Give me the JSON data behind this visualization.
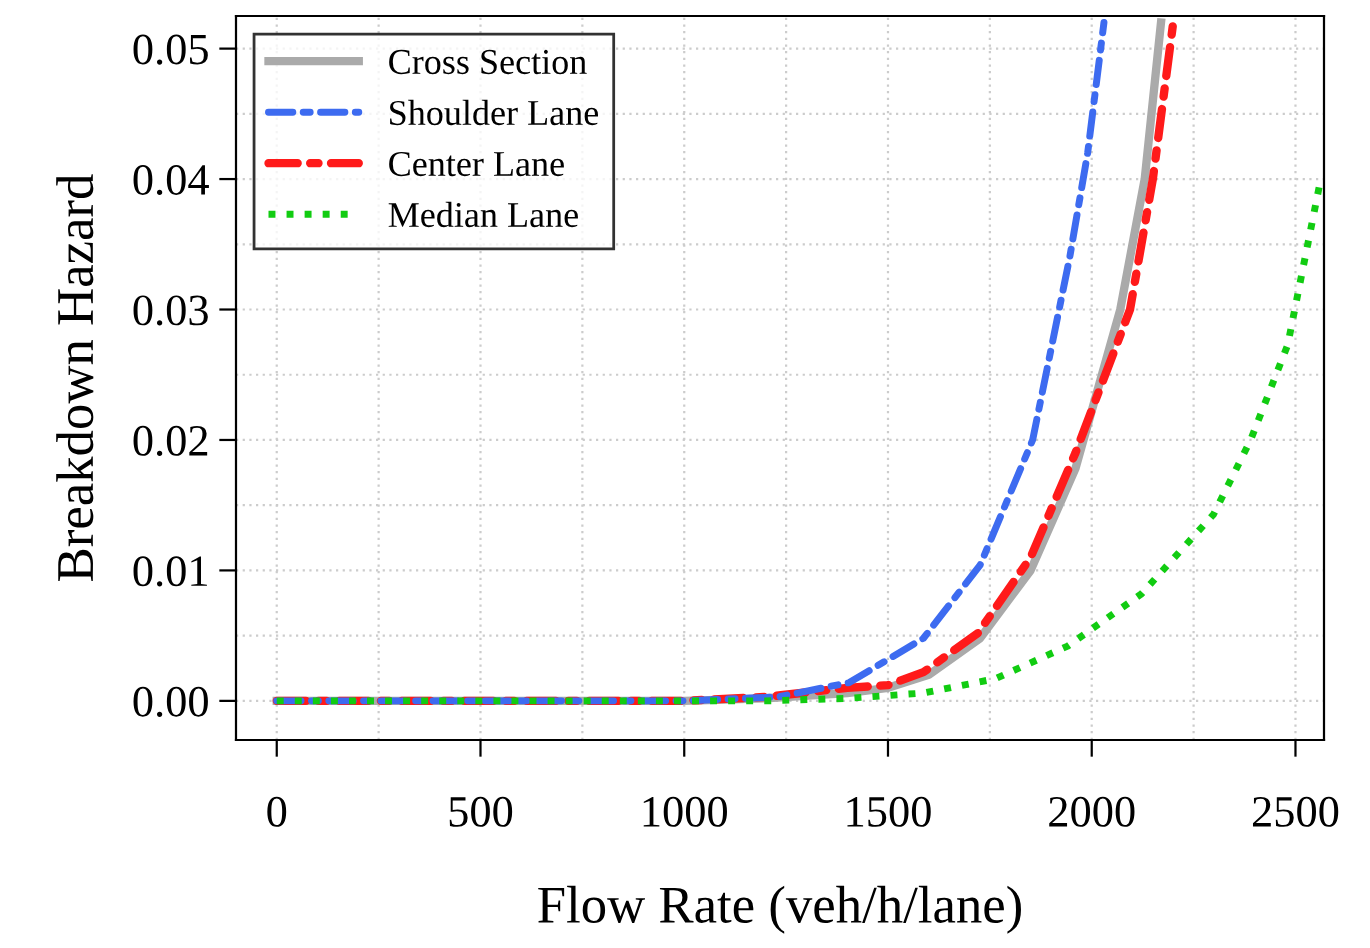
{
  "chart_data": {
    "type": "line",
    "xlabel": "Flow Rate (veh/h/lane)",
    "ylabel": "Breakdown Hazard",
    "xlim": [
      -100,
      2570
    ],
    "ylim": [
      -0.003,
      0.0525
    ],
    "xticks": [
      0,
      500,
      1000,
      1500,
      2000,
      2500
    ],
    "yticks": [
      {
        "value": 0,
        "label": "0.00"
      },
      {
        "value": 0.01,
        "label": "0.01"
      },
      {
        "value": 0.02,
        "label": "0.02"
      },
      {
        "value": 0.03,
        "label": "0.03"
      },
      {
        "value": 0.04,
        "label": "0.04"
      },
      {
        "value": 0.05,
        "label": "0.05"
      }
    ],
    "grid": true,
    "legend": "top left",
    "series": [
      {
        "name": "Cross Section",
        "color": "#aaaaaa",
        "line_style": "solid",
        "x": [
          0,
          1000,
          1200,
          1400,
          1500,
          1600,
          1726,
          1850,
          1960,
          2070,
          2130,
          2170
        ],
        "values": [
          0,
          0,
          0.0002,
          0.0006,
          0.001,
          0.002,
          0.0048,
          0.01,
          0.0178,
          0.03,
          0.04,
          0.052
        ]
      },
      {
        "name": "Shoulder Lane",
        "color": "#3d6bf0",
        "line_style": "dashdot",
        "x": [
          0,
          1000,
          1229,
          1405,
          1587,
          1726,
          1855,
          1946,
          1990,
          2030
        ],
        "values": [
          0,
          0,
          0.0003,
          0.0014,
          0.0048,
          0.0104,
          0.02,
          0.034,
          0.042,
          0.052
        ]
      },
      {
        "name": "Center Lane",
        "color": "#ff1a1a",
        "line_style": "dashdot",
        "x": [
          0,
          1000,
          1200,
          1400,
          1500,
          1587,
          1721,
          1850,
          1960,
          2094,
          2150,
          2200
        ],
        "values": [
          0,
          0,
          0.0003,
          0.001,
          0.0012,
          0.0022,
          0.0052,
          0.011,
          0.019,
          0.03,
          0.04,
          0.052
        ]
      },
      {
        "name": "Median Lane",
        "color": "#11cc11",
        "line_style": "dotted",
        "x": [
          0,
          1200,
          1405,
          1587,
          1764,
          1941,
          2122,
          2299,
          2390,
          2481,
          2562
        ],
        "values": [
          0,
          0,
          0.0002,
          0.0006,
          0.0017,
          0.0042,
          0.0082,
          0.0143,
          0.02,
          0.0273,
          0.04
        ]
      }
    ]
  }
}
